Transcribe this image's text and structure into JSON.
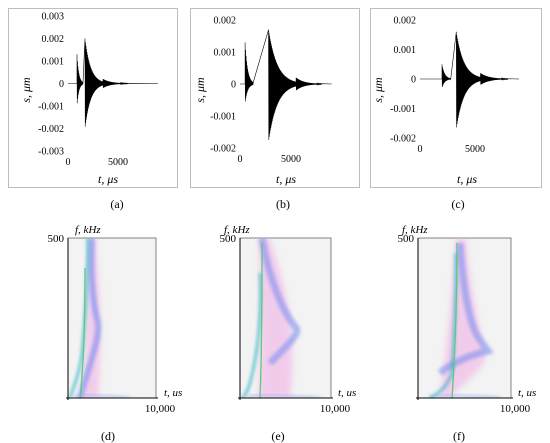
{
  "figure": {
    "top_panels": [
      {
        "caption": "(a)",
        "ylabel": "s, μm",
        "xlabel": "t, μs",
        "yticks": [
          "0.003",
          "0.002",
          "0.001",
          "0",
          "-0.001",
          "-0.002",
          "-0.003"
        ],
        "xticks": [
          "0",
          "5000"
        ]
      },
      {
        "caption": "(b)",
        "ylabel": "s, μm",
        "xlabel": "t, μs",
        "yticks": [
          "0.002",
          "0.001",
          "0",
          "-0.001",
          "-0.002"
        ],
        "xticks": [
          "0",
          "5000"
        ]
      },
      {
        "caption": "(c)",
        "ylabel": "s, μm",
        "xlabel": "t, μs",
        "yticks": [
          "0.002",
          "0.001",
          "0",
          "-0.001",
          "-0.002"
        ],
        "xticks": [
          "0",
          "5000"
        ]
      }
    ],
    "bottom_panels": [
      {
        "caption": "(d)",
        "ylabel": "f, kHz",
        "xlabel": "t, us",
        "ytick": "500",
        "xtick": "10,000"
      },
      {
        "caption": "(e)",
        "ylabel": "f, kHz",
        "xlabel": "t, us",
        "ytick": "500",
        "xtick": "10,000"
      },
      {
        "caption": "(f)",
        "ylabel": "f, kHz",
        "xlabel": "t, us",
        "ytick": "500",
        "xtick": "10,000"
      }
    ]
  },
  "chart_data": [
    {
      "type": "line",
      "panel": "a",
      "xlim": [
        0,
        10000
      ],
      "ylim": [
        -0.003,
        0.003
      ],
      "bursts": [
        {
          "t_start": 900,
          "t_end": 1500,
          "peak": 0.0013,
          "trough": -0.001
        },
        {
          "t_start": 1700,
          "t_end": 3500,
          "peak": 0.002,
          "trough": -0.002
        },
        {
          "t_start": 3500,
          "t_end": 6000,
          "peak": 0.0002,
          "trough": -0.0002
        }
      ]
    },
    {
      "type": "line",
      "panel": "b",
      "xlim": [
        0,
        10000
      ],
      "ylim": [
        -0.002,
        0.002
      ],
      "bursts": [
        {
          "t_start": 500,
          "t_end": 1300,
          "peak": 0.0013,
          "trough": -0.0006
        },
        {
          "t_start": 2800,
          "t_end": 5500,
          "peak": 0.0017,
          "trough": -0.0018
        },
        {
          "t_start": 5500,
          "t_end": 8000,
          "peak": 0.0002,
          "trough": -0.0002
        }
      ]
    },
    {
      "type": "line",
      "panel": "c",
      "xlim": [
        0,
        10000
      ],
      "ylim": [
        -0.002,
        0.002
      ],
      "bursts": [
        {
          "t_start": 2000,
          "t_end": 2800,
          "peak": 0.0005,
          "trough": -0.0003
        },
        {
          "t_start": 3300,
          "t_end": 5500,
          "peak": 0.0016,
          "trough": -0.0017
        },
        {
          "t_start": 5500,
          "t_end": 8000,
          "peak": 0.0002,
          "trough": -0.0002
        }
      ]
    },
    {
      "type": "heatmap",
      "panel": "d",
      "ylim": [
        0,
        500
      ],
      "xlim": [
        0,
        10000
      ]
    },
    {
      "type": "heatmap",
      "panel": "e",
      "ylim": [
        0,
        500
      ],
      "xlim": [
        0,
        10000
      ]
    },
    {
      "type": "heatmap",
      "panel": "f",
      "ylim": [
        0,
        500
      ],
      "xlim": [
        0,
        10000
      ]
    }
  ]
}
